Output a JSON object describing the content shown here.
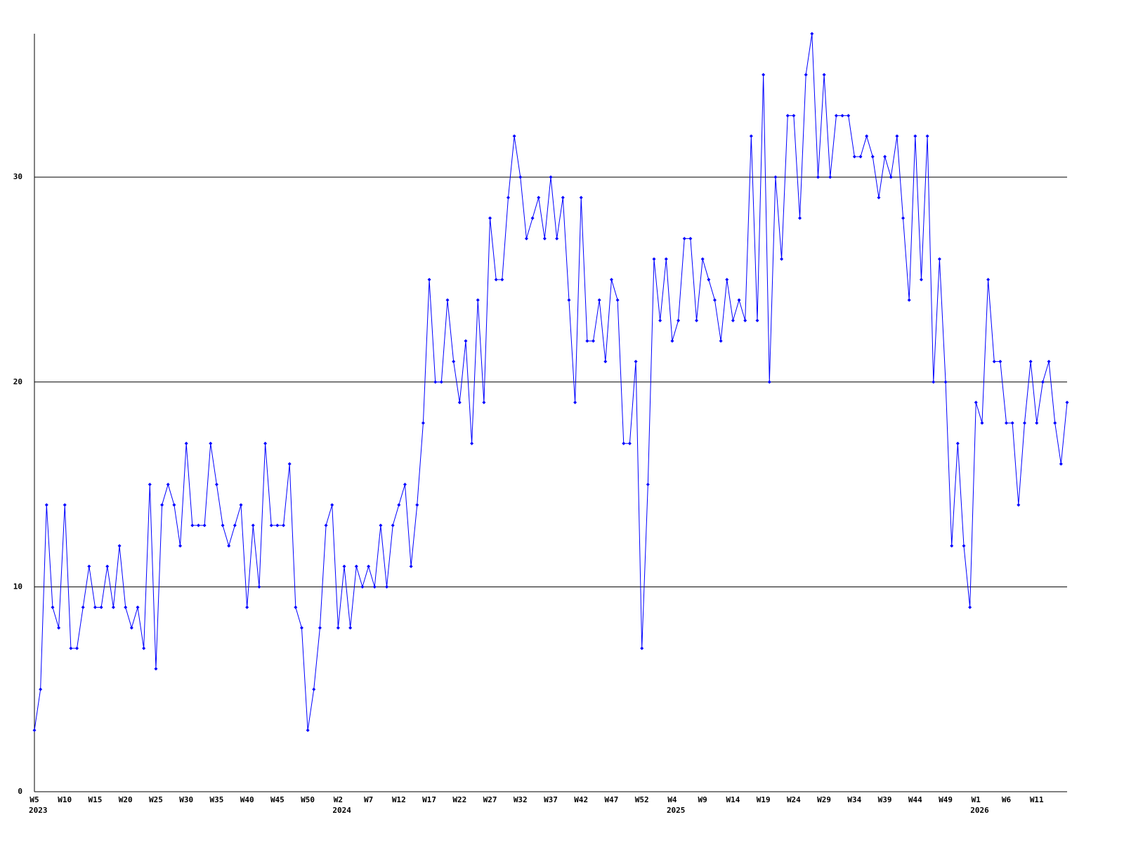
{
  "chart_data": {
    "type": "line",
    "color": "#0000ff",
    "grid": true,
    "ylim": [
      0,
      37
    ],
    "yticks": [
      0,
      10,
      20,
      30
    ],
    "x_group_labels": [
      "2023",
      "2024",
      "2025",
      "2026"
    ],
    "categories": [
      "W5",
      null,
      null,
      null,
      null,
      "W10",
      null,
      null,
      null,
      null,
      "W15",
      null,
      null,
      null,
      null,
      "W20",
      null,
      null,
      null,
      null,
      "W25",
      null,
      null,
      null,
      null,
      "W30",
      null,
      null,
      null,
      null,
      "W35",
      null,
      null,
      null,
      null,
      "W40",
      null,
      null,
      null,
      null,
      "W45",
      null,
      null,
      null,
      null,
      "W50",
      null,
      null,
      null,
      null,
      "W2",
      null,
      null,
      null,
      null,
      "W7",
      null,
      null,
      null,
      null,
      "W12",
      null,
      null,
      null,
      null,
      "W17",
      null,
      null,
      null,
      null,
      "W22",
      null,
      null,
      null,
      null,
      "W27",
      null,
      null,
      null,
      null,
      "W32",
      null,
      null,
      null,
      null,
      "W37",
      null,
      null,
      null,
      null,
      "W42",
      null,
      null,
      null,
      null,
      "W47",
      null,
      null,
      null,
      null,
      "W52",
      null,
      null,
      null,
      null,
      "W4",
      null,
      null,
      null,
      null,
      "W9",
      null,
      null,
      null,
      null,
      "W14",
      null,
      null,
      null,
      null,
      "W19",
      null,
      null,
      null,
      null,
      "W24",
      null,
      null,
      null,
      null,
      "W29",
      null,
      null,
      null,
      null,
      "W34",
      null,
      null,
      null,
      null,
      "W39",
      null,
      null,
      null,
      null,
      "W44",
      null,
      null,
      null,
      null,
      "W49",
      null,
      null,
      null,
      null,
      "W1",
      null,
      null,
      null,
      null,
      "W6",
      null,
      null,
      null,
      null,
      "W11",
      null,
      null,
      null,
      null,
      null
    ],
    "values": [
      3,
      5,
      14,
      9,
      8,
      14,
      7,
      7,
      9,
      11,
      9,
      9,
      11,
      9,
      12,
      9,
      8,
      9,
      7,
      15,
      6,
      14,
      15,
      14,
      12,
      17,
      13,
      13,
      13,
      17,
      15,
      13,
      12,
      13,
      14,
      9,
      13,
      10,
      17,
      13,
      13,
      13,
      16,
      9,
      8,
      3,
      5,
      8,
      13,
      14,
      8,
      11,
      8,
      11,
      10,
      11,
      10,
      13,
      10,
      13,
      14,
      15,
      11,
      14,
      18,
      25,
      20,
      20,
      24,
      21,
      19,
      22,
      17,
      24,
      19,
      28,
      25,
      25,
      29,
      32,
      30,
      27,
      28,
      29,
      27,
      30,
      27,
      29,
      24,
      19,
      29,
      22,
      22,
      24,
      21,
      25,
      24,
      17,
      17,
      21,
      7,
      15,
      26,
      23,
      26,
      22,
      23,
      27,
      27,
      23,
      26,
      25,
      24,
      22,
      25,
      23,
      24,
      23,
      32,
      23,
      35,
      20,
      30,
      26,
      33,
      33,
      28,
      35,
      37,
      30,
      35,
      30,
      33,
      33,
      33,
      31,
      31,
      32,
      31,
      29,
      31,
      30,
      32,
      28,
      24,
      32,
      25,
      32,
      20,
      26,
      20,
      12,
      17,
      12,
      9,
      19,
      18,
      25,
      21,
      21,
      18,
      18,
      14,
      18,
      21,
      18,
      20,
      21,
      18,
      16,
      19
    ]
  }
}
